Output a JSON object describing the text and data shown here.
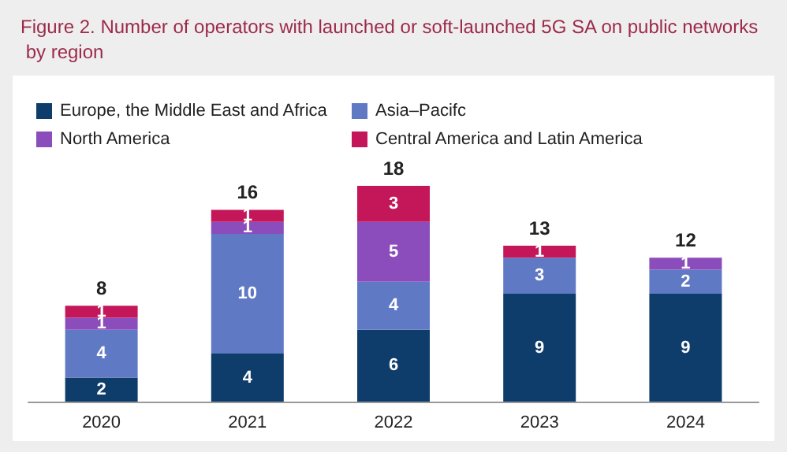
{
  "chart_data": {
    "type": "bar",
    "title": "Figure 2. Number of operators with launched or soft-launched 5G SA on public networks by region",
    "categories": [
      "2020",
      "2021",
      "2022",
      "2023",
      "2024"
    ],
    "stacked": true,
    "data_labels": true,
    "legend": "top",
    "series": [
      {
        "name": "Europe, the Middle East and Africa",
        "color": "#0f3d6b",
        "values": [
          2,
          4,
          6,
          9,
          9
        ]
      },
      {
        "name": "Asia–Pacifc",
        "color": "#6079c4",
        "values": [
          4,
          10,
          4,
          3,
          2
        ]
      },
      {
        "name": "North America",
        "color": "#8b4cbc",
        "values": [
          1,
          1,
          5,
          null,
          1
        ]
      },
      {
        "name": "Central America and Latin America",
        "color": "#c4175a",
        "values": [
          1,
          1,
          3,
          1,
          null
        ]
      }
    ],
    "totals": [
      "8",
      "16",
      "18",
      "13",
      "12"
    ]
  }
}
